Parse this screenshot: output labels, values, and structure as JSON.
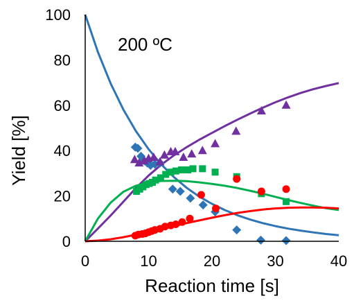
{
  "chart_data": {
    "type": "scatter",
    "annotation": "200 ºC",
    "xlabel": "Reaction time [s]",
    "ylabel": "Yield [%]",
    "xlim": [
      0,
      40
    ],
    "ylim": [
      0,
      100
    ],
    "xticks": [
      0,
      10,
      20,
      30,
      40
    ],
    "yticks": [
      0,
      20,
      40,
      60,
      80,
      100
    ],
    "grid": false,
    "legend": "none",
    "series": [
      {
        "marker": "diamond",
        "color": "#2E75B6",
        "points": [
          [
            7.9,
            41.5
          ],
          [
            8.3,
            41
          ],
          [
            8.8,
            37.5
          ],
          [
            9.3,
            35.5
          ],
          [
            9.8,
            34.5
          ],
          [
            10.3,
            33.5
          ],
          [
            11,
            34
          ],
          [
            11.8,
            34.5
          ],
          [
            13.8,
            23
          ],
          [
            15,
            22
          ],
          [
            16.6,
            19
          ],
          [
            18.6,
            16
          ],
          [
            20.5,
            13
          ],
          [
            23.9,
            5
          ],
          [
            27.7,
            0.5
          ],
          [
            31.7,
            0.3
          ]
        ],
        "fit": [
          [
            0,
            100
          ],
          [
            2,
            83.5
          ],
          [
            4,
            69.7
          ],
          [
            6,
            58.2
          ],
          [
            8,
            48.6
          ],
          [
            10,
            40.6
          ],
          [
            12,
            33.9
          ],
          [
            14,
            28.3
          ],
          [
            16,
            23.6
          ],
          [
            18,
            19.7
          ],
          [
            20,
            16.5
          ],
          [
            22,
            13.8
          ],
          [
            24,
            11.5
          ],
          [
            26,
            9.6
          ],
          [
            28,
            8
          ],
          [
            30,
            6.7
          ],
          [
            32,
            5.6
          ],
          [
            34,
            4.7
          ],
          [
            36,
            3.9
          ],
          [
            38,
            3.2
          ],
          [
            40,
            2.7
          ]
        ]
      },
      {
        "marker": "triangle",
        "color": "#7030A0",
        "points": [
          [
            7.8,
            36
          ],
          [
            8.5,
            34.5
          ],
          [
            9.3,
            35.5
          ],
          [
            10,
            36.5
          ],
          [
            10.8,
            37
          ],
          [
            11.8,
            35
          ],
          [
            12.5,
            38
          ],
          [
            13.5,
            39.5
          ],
          [
            14.2,
            39.5
          ],
          [
            15.5,
            37
          ],
          [
            16.8,
            38.5
          ],
          [
            18.5,
            40
          ],
          [
            20.5,
            43
          ],
          [
            23.8,
            48.5
          ],
          [
            27.8,
            57.5
          ],
          [
            31.7,
            60
          ]
        ],
        "fit": [
          [
            0,
            0
          ],
          [
            2,
            5.6
          ],
          [
            4,
            11.3
          ],
          [
            6,
            17.4
          ],
          [
            8,
            23.5
          ],
          [
            10,
            29
          ],
          [
            12,
            33.8
          ],
          [
            14,
            37.9
          ],
          [
            16,
            41.5
          ],
          [
            18,
            44.8
          ],
          [
            20,
            47.8
          ],
          [
            22,
            50.8
          ],
          [
            24,
            53.6
          ],
          [
            26,
            56.3
          ],
          [
            28,
            58.9
          ],
          [
            30,
            61.3
          ],
          [
            32,
            63.5
          ],
          [
            34,
            65.4
          ],
          [
            36,
            67.1
          ],
          [
            38,
            68.5
          ],
          [
            40,
            69.8
          ]
        ]
      },
      {
        "marker": "square",
        "color": "#00B050",
        "points": [
          [
            8.1,
            22
          ],
          [
            8.6,
            23
          ],
          [
            9.1,
            24
          ],
          [
            9.6,
            25
          ],
          [
            10.1,
            25.5
          ],
          [
            10.6,
            26
          ],
          [
            11.1,
            27
          ],
          [
            11.9,
            28
          ],
          [
            12.7,
            29.5
          ],
          [
            13.5,
            30.5
          ],
          [
            14.3,
            31
          ],
          [
            15.2,
            31.5
          ],
          [
            16.2,
            31.5
          ],
          [
            17,
            32
          ],
          [
            18.5,
            32
          ],
          [
            20.5,
            30.5
          ],
          [
            23.9,
            28.5
          ],
          [
            27.8,
            21
          ],
          [
            31.7,
            17.5
          ]
        ],
        "fit": [
          [
            0,
            0
          ],
          [
            2,
            10
          ],
          [
            4,
            17
          ],
          [
            6,
            21.8
          ],
          [
            8,
            24.5
          ],
          [
            10,
            26
          ],
          [
            12,
            26.6
          ],
          [
            14,
            26.7
          ],
          [
            16,
            26.5
          ],
          [
            18,
            26
          ],
          [
            20,
            25.3
          ],
          [
            22,
            24.5
          ],
          [
            24,
            23.5
          ],
          [
            26,
            22.3
          ],
          [
            28,
            21
          ],
          [
            30,
            19.6
          ],
          [
            32,
            18.2
          ],
          [
            34,
            16.9
          ],
          [
            36,
            15.7
          ],
          [
            38,
            14.6
          ],
          [
            40,
            13.8
          ]
        ]
      },
      {
        "marker": "circle",
        "color": "#FF0000",
        "points": [
          [
            7.9,
            2.5
          ],
          [
            8.4,
            3
          ],
          [
            9,
            3.2
          ],
          [
            9.5,
            3.5
          ],
          [
            10,
            4
          ],
          [
            10.5,
            4.5
          ],
          [
            11,
            5
          ],
          [
            11.8,
            5.5
          ],
          [
            12.6,
            6.5
          ],
          [
            13.5,
            7
          ],
          [
            14.3,
            7.5
          ],
          [
            15.3,
            8.5
          ],
          [
            16.5,
            10
          ],
          [
            18.3,
            20.5
          ],
          [
            20.6,
            14.5
          ],
          [
            23.9,
            27.5
          ],
          [
            27.8,
            22
          ],
          [
            31.7,
            23
          ]
        ],
        "fit": [
          [
            0,
            0
          ],
          [
            2,
            0.3
          ],
          [
            4,
            0.9
          ],
          [
            6,
            1.8
          ],
          [
            8,
            2.9
          ],
          [
            10,
            4.1
          ],
          [
            12,
            5.4
          ],
          [
            14,
            6.7
          ],
          [
            16,
            8
          ],
          [
            18,
            9.2
          ],
          [
            20,
            10.4
          ],
          [
            22,
            11.5
          ],
          [
            24,
            12.5
          ],
          [
            26,
            13.3
          ],
          [
            28,
            14
          ],
          [
            30,
            14.5
          ],
          [
            32,
            14.8
          ],
          [
            34,
            14.9
          ],
          [
            36,
            14.9
          ],
          [
            38,
            14.8
          ],
          [
            40,
            14.5
          ]
        ]
      }
    ]
  }
}
